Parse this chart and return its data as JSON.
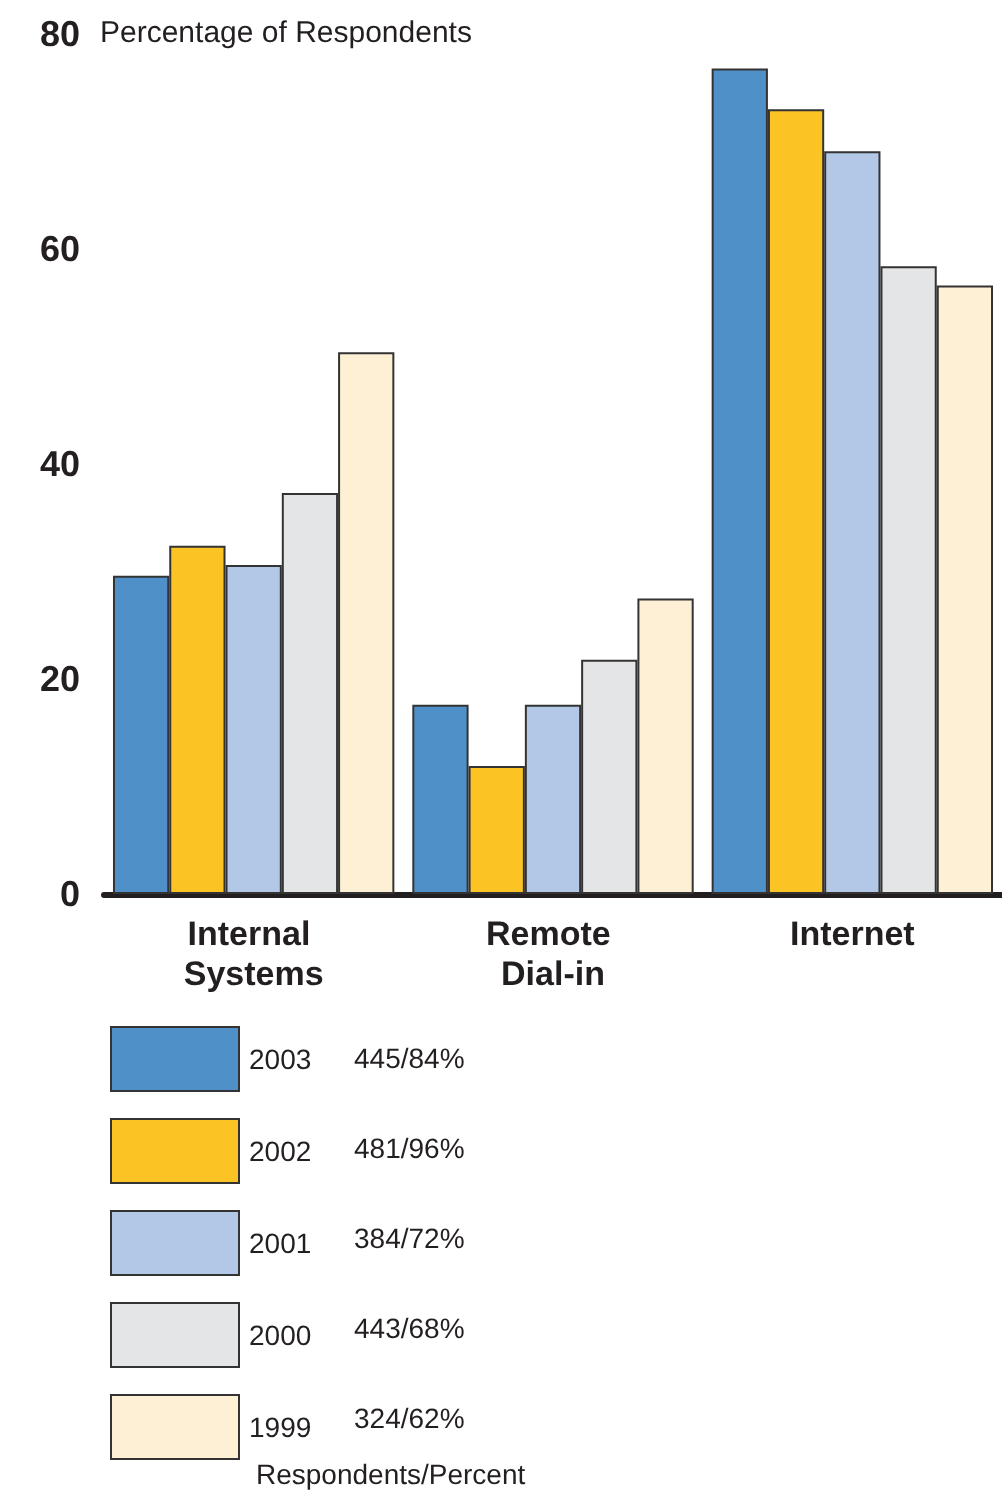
{
  "chart_data": {
    "type": "bar",
    "ylabel": "Percentage of Respondents",
    "legend_title": "Respondents/Percent",
    "categories": [
      "Internal Systems",
      "Remote Dial-in",
      "Internet"
    ],
    "series": [
      {
        "name": "2003",
        "color": "#5090c8",
        "values": [
          29.6,
          17.6,
          76.8
        ]
      },
      {
        "name": "2002",
        "color": "#fcc324",
        "values": [
          32.4,
          11.9,
          73.0
        ]
      },
      {
        "name": "2001",
        "color": "#b3c8e6",
        "values": [
          30.6,
          17.6,
          69.1
        ]
      },
      {
        "name": "2000",
        "color": "#e4e5e7",
        "values": [
          37.3,
          21.8,
          58.4
        ]
      },
      {
        "name": "1999",
        "color": "#fef0d4",
        "values": [
          50.4,
          27.5,
          56.6
        ]
      }
    ],
    "annotations": [
      "445/84%",
      "481/96%",
      "384/72%",
      "443/68%",
      "324/62%"
    ],
    "ylim": [
      0,
      80
    ],
    "yticks": [
      0,
      20,
      40,
      60,
      80
    ],
    "grid": false,
    "legend": "bottom left"
  }
}
